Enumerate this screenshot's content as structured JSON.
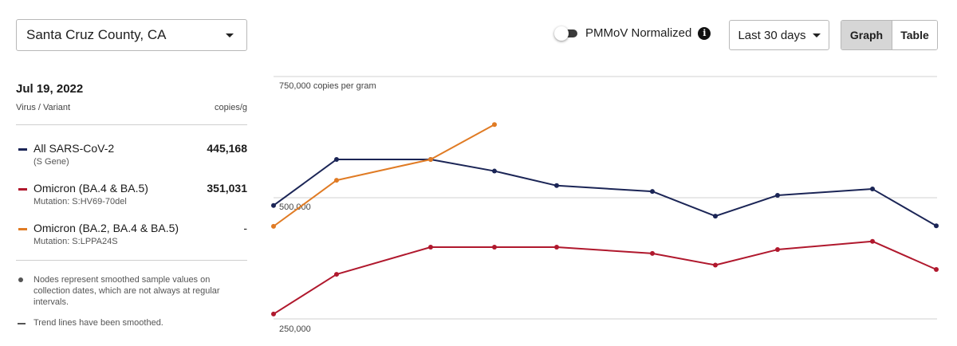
{
  "location": {
    "selected": "Santa Cruz County, CA"
  },
  "normalize_toggle": {
    "label": "PMMoV Normalized",
    "on": false
  },
  "info_glyph": "i",
  "range": {
    "selected": "Last 30 days"
  },
  "view_toggle": {
    "graph_label": "Graph",
    "table_label": "Table",
    "active": "Graph"
  },
  "legend": {
    "date": "Jul 19, 2022",
    "col_left": "Virus / Variant",
    "col_right": "copies/g",
    "items": [
      {
        "name": "All SARS-CoV-2",
        "sub": "(S Gene)",
        "value": "445,168",
        "color": "#1b2556"
      },
      {
        "name": "Omicron (BA.4 & BA.5)",
        "sub": "Mutation: S:HV69-70del",
        "value": "351,031",
        "color": "#b0182d"
      },
      {
        "name": "Omicron (BA.2, BA.4 & BA.5)",
        "sub": "Mutation: S:LPPA24S",
        "value": "-",
        "color": "#e07b24"
      }
    ]
  },
  "notes": [
    "Nodes represent smoothed sample values on collection dates, which are not always at regular intervals.",
    "Trend lines have been smoothed."
  ],
  "chart_data": {
    "type": "line",
    "y_tick_labels": [
      "750,000 copies per gram",
      "500,000",
      "250,000"
    ],
    "y_ticks": [
      750000,
      500000,
      250000
    ],
    "ylim": [
      250000,
      750000
    ],
    "grid": true,
    "x_index": [
      0,
      1,
      2,
      3,
      4,
      5,
      6,
      7,
      8,
      9,
      10
    ],
    "series": [
      {
        "name": "All SARS-CoV-2",
        "color": "#1b2556",
        "values": [
          484000,
          579000,
          579000,
          555000,
          525000,
          513000,
          462000,
          505000,
          518000,
          442000
        ]
      },
      {
        "name": "Omicron (BA.4 & BA.5)",
        "color": "#b0182d",
        "values": [
          260000,
          342000,
          398000,
          398000,
          398000,
          385000,
          361000,
          393000,
          410000,
          352000
        ]
      },
      {
        "name": "Omicron (BA.2, BA.4 & BA.5)",
        "color": "#e07b24",
        "values": [
          441000,
          536000,
          579000,
          651000
        ]
      }
    ]
  }
}
